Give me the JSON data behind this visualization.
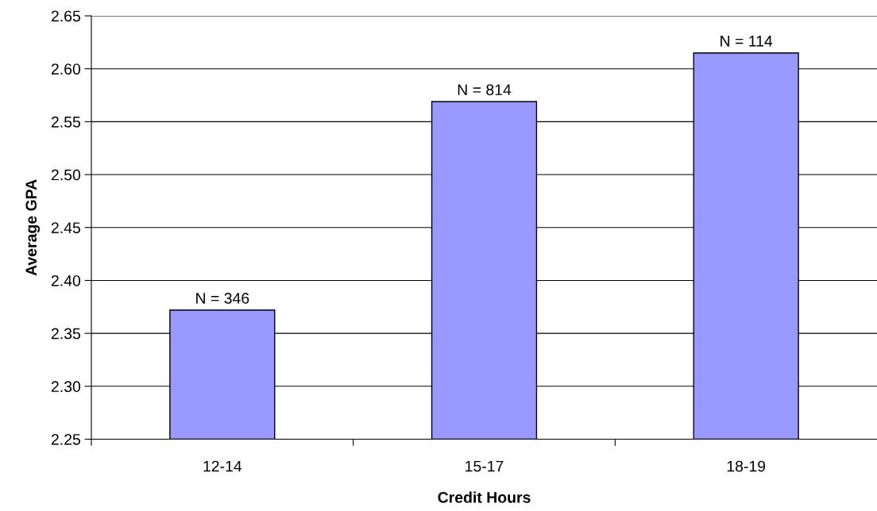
{
  "chart_data": {
    "type": "bar",
    "xlabel": "Credit Hours",
    "ylabel": "Average GPA",
    "categories": [
      "12-14",
      "15-17",
      "18-19"
    ],
    "values": [
      2.372,
      2.569,
      2.615
    ],
    "annotations": [
      {
        "text": "N = 346",
        "x": "12-14",
        "y": 2.372
      },
      {
        "text": "N = 814",
        "x": "15-17",
        "y": 2.569
      },
      {
        "text": "N = 114",
        "x": "18-19",
        "y": 2.615
      }
    ],
    "color": "#9999ff",
    "ylim": [
      2.25,
      2.65
    ],
    "yticks": [
      {
        "value": 2.25,
        "label": "2.25"
      },
      {
        "value": 2.3,
        "label": "2.30"
      },
      {
        "value": 2.35,
        "label": "2.35"
      },
      {
        "value": 2.4,
        "label": "2.40"
      },
      {
        "value": 2.45,
        "label": "2.45"
      },
      {
        "value": 2.5,
        "label": "2.50"
      },
      {
        "value": 2.55,
        "label": "2.55"
      },
      {
        "value": 2.6,
        "label": "2.60"
      },
      {
        "value": 2.65,
        "label": "2.65"
      }
    ],
    "grid": "y"
  }
}
